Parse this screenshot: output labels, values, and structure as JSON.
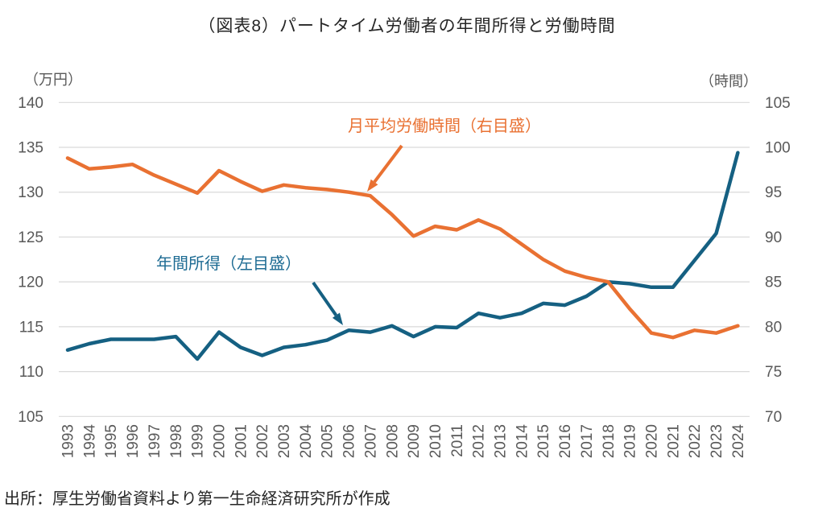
{
  "title": "（図表8）パートタイム労働者の年間所得と労働時間",
  "source": "出所：厚生労働省資料より第一生命経済研究所が作成",
  "colors": {
    "income_line": "#156082",
    "hours_line": "#E97132",
    "gridline": "#D9D9D9",
    "tick_text": "#595959"
  },
  "chart_data": {
    "type": "line",
    "title": "（図表8）パートタイム労働者の年間所得と労働時間",
    "x": [
      1993,
      1994,
      1995,
      1996,
      1997,
      1998,
      1999,
      2000,
      2001,
      2002,
      2003,
      2004,
      2005,
      2006,
      2007,
      2008,
      2009,
      2010,
      2011,
      2012,
      2013,
      2014,
      2015,
      2016,
      2017,
      2018,
      2019,
      2020,
      2021,
      2022,
      2023,
      2024
    ],
    "series": [
      {
        "name": "年間所得（左目盛）",
        "axis": "left",
        "color": "#156082",
        "values": [
          112.4,
          113.1,
          113.6,
          113.6,
          113.6,
          113.9,
          111.4,
          114.4,
          112.7,
          111.8,
          112.7,
          113.0,
          113.5,
          114.6,
          114.4,
          115.1,
          113.9,
          115.0,
          114.9,
          116.5,
          116.0,
          116.5,
          117.6,
          117.4,
          118.4,
          120.0,
          119.8,
          119.4,
          119.4,
          122.4,
          125.4,
          134.4
        ]
      },
      {
        "name": "月平均労働時間（右目盛）",
        "axis": "right",
        "color": "#E97132",
        "values": [
          98.8,
          97.6,
          97.8,
          98.1,
          96.9,
          95.9,
          94.9,
          97.4,
          96.2,
          95.1,
          95.8,
          95.5,
          95.3,
          95.0,
          94.6,
          92.5,
          90.1,
          91.2,
          90.8,
          91.9,
          90.9,
          89.2,
          87.5,
          86.2,
          85.5,
          85.0,
          82.0,
          79.3,
          78.8,
          79.6,
          79.3,
          80.1
        ]
      }
    ],
    "left_axis": {
      "unit": "（万円）",
      "min": 105,
      "max": 140,
      "step": 5
    },
    "right_axis": {
      "unit": "（時間）",
      "min": 70,
      "max": 105,
      "step": 5
    },
    "grid": true,
    "legend_position": "inline-annotations"
  }
}
